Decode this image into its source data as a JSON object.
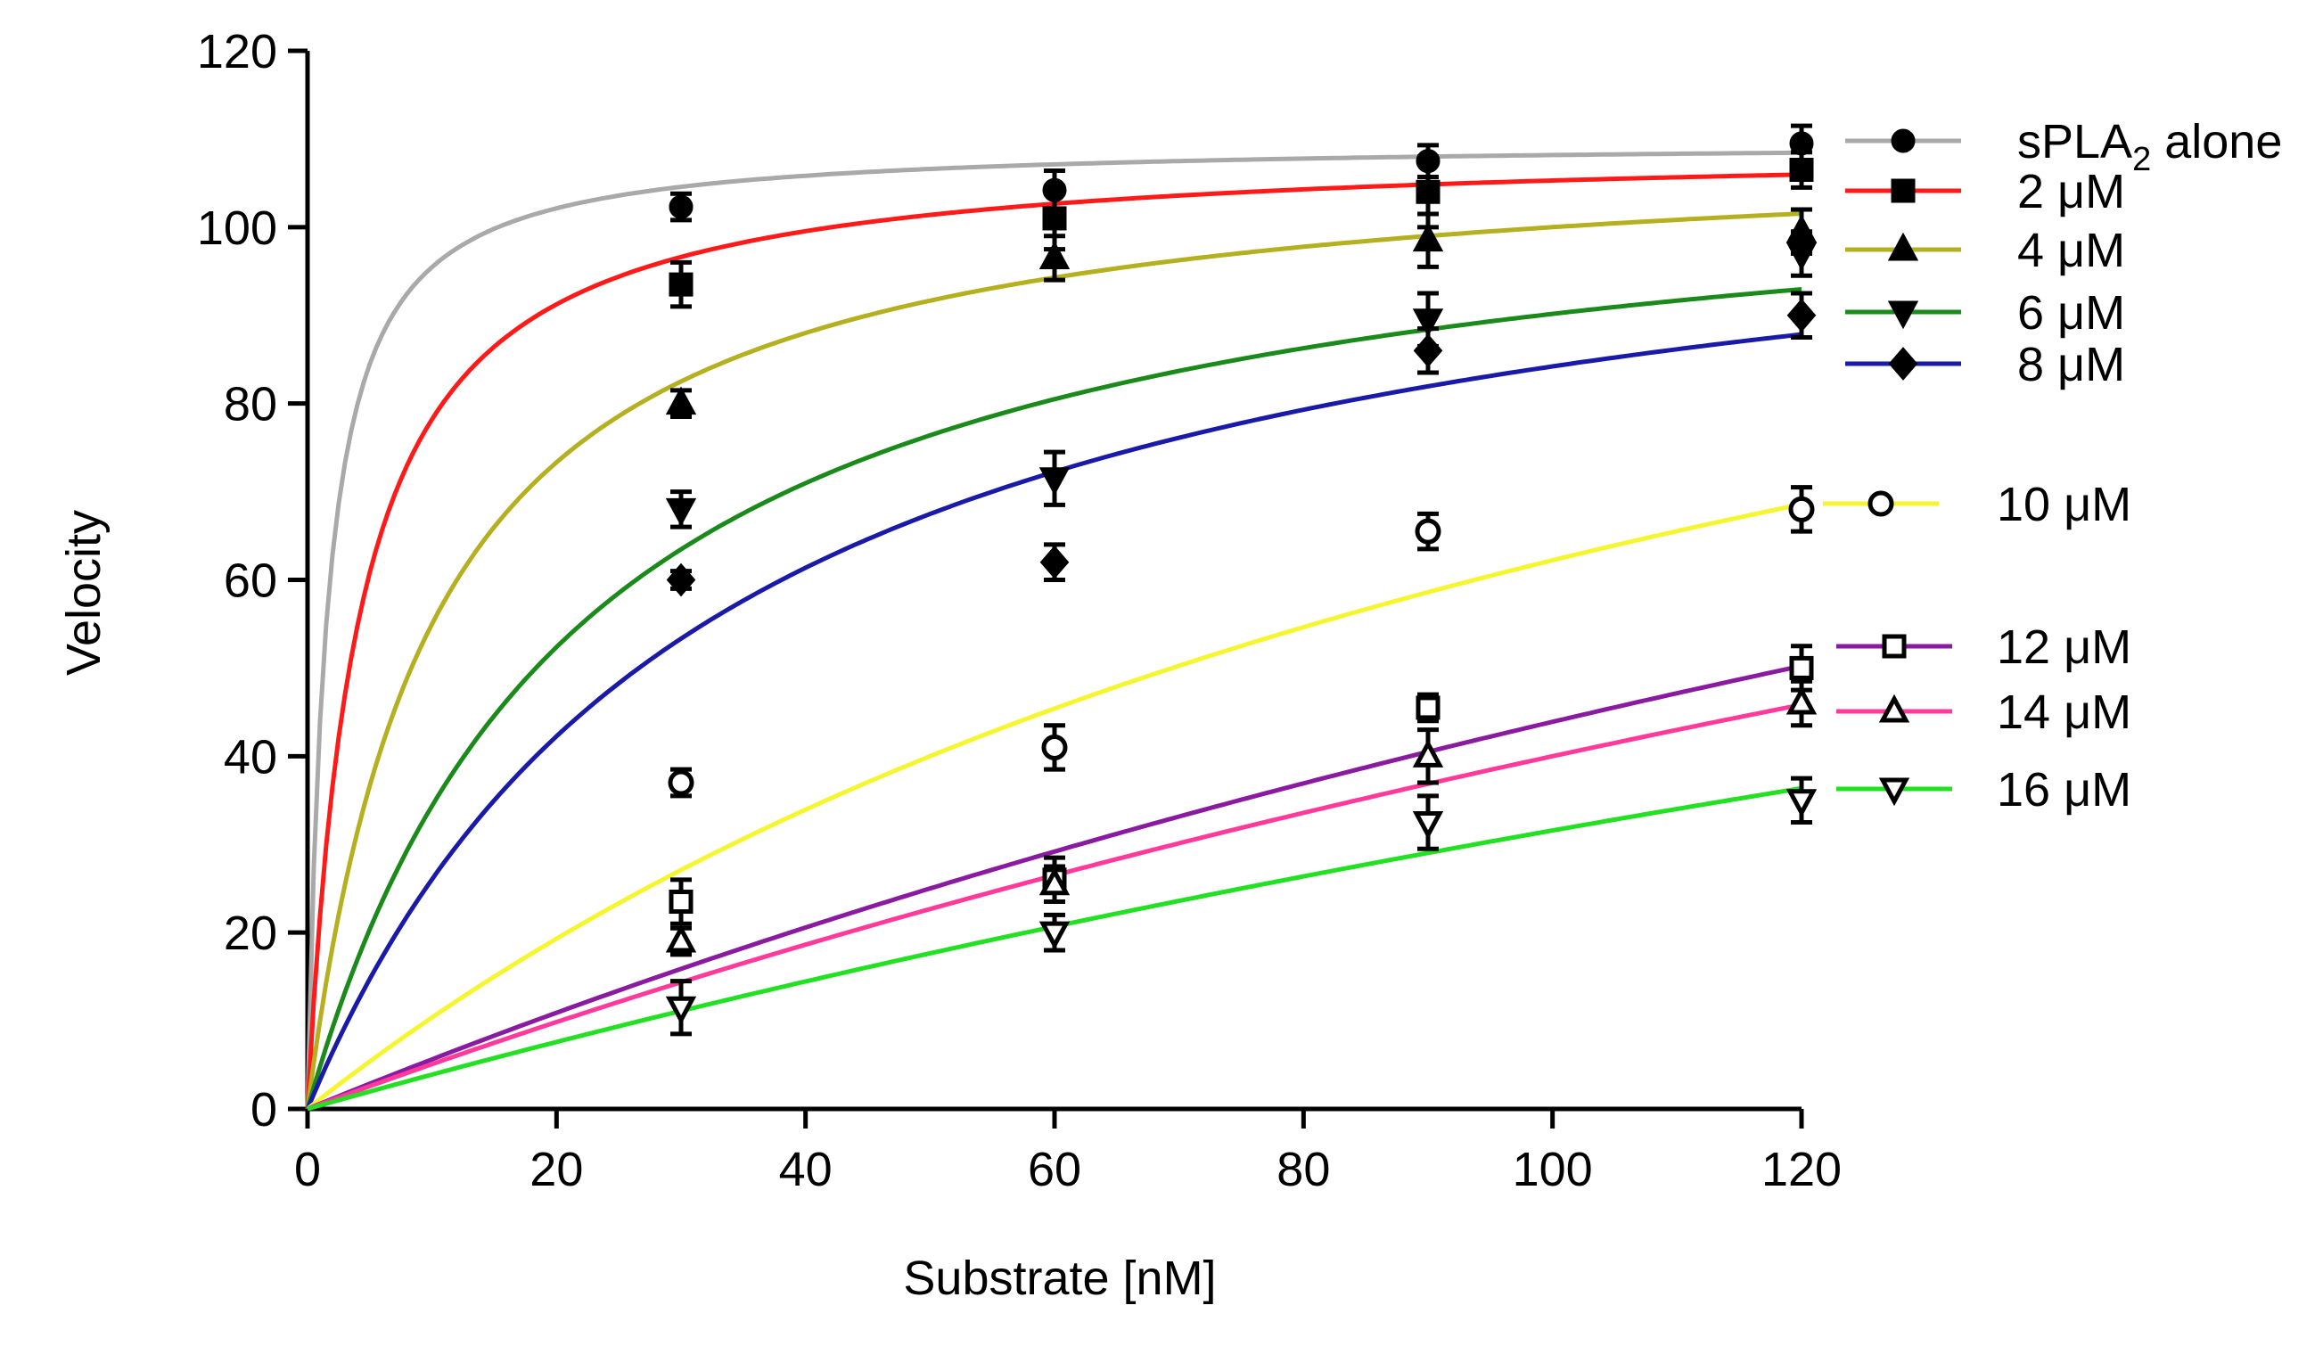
{
  "chart_data": {
    "type": "scatter",
    "title": "",
    "xlabel": "Substrate [nM]",
    "ylabel": "Velocity",
    "xlim": [
      0,
      120
    ],
    "ylim": [
      0,
      120
    ],
    "xticks": [
      0,
      20,
      40,
      60,
      80,
      100,
      120
    ],
    "yticks": [
      0,
      20,
      40,
      60,
      80,
      100,
      120
    ],
    "x": [
      30,
      60,
      90,
      120
    ],
    "legend_position": "right",
    "series": [
      {
        "name": "sPLA2 alone",
        "label_main": "sPLA",
        "label_sub": "2",
        "label_tail": " alone",
        "color": "#a9a9a9",
        "marker": "circle-filled",
        "vmax": 109.8,
        "km": 1.5,
        "values": [
          102.3,
          104.2,
          107.5,
          109.5
        ],
        "errors": [
          1.5,
          2.2,
          1.8,
          2.0
        ]
      },
      {
        "name": "2 μM",
        "label_main": "2 μM",
        "color": "#ff1a1a",
        "marker": "square-filled",
        "vmax": 109.5,
        "km": 4.0,
        "values": [
          93.5,
          101.0,
          104.0,
          106.5
        ],
        "errors": [
          2.5,
          3.5,
          4.0,
          2.0
        ]
      },
      {
        "name": "4 μM",
        "label_main": "4 μM",
        "color": "#b5b020",
        "marker": "triangle-up-filled",
        "vmax": 110.0,
        "km": 10.0,
        "values": [
          80.0,
          96.5,
          98.5,
          99.5
        ],
        "errors": [
          1.5,
          2.5,
          3.0,
          2.5
        ]
      },
      {
        "name": "6 μM",
        "label_main": "6 μM",
        "color": "#1a8a1a",
        "marker": "triangle-down-filled",
        "vmax": 110.0,
        "km": 22.0,
        "values": [
          68.0,
          71.5,
          89.5,
          97.0
        ],
        "errors": [
          2.0,
          3.0,
          3.0,
          2.5
        ]
      },
      {
        "name": "8 μM",
        "label_main": "8 μM",
        "color": "#1a1aa8",
        "marker": "diamond-filled",
        "vmax": 112.0,
        "km": 33.0,
        "values": [
          60.0,
          62.0,
          86.0,
          90.0
        ],
        "errors": [
          1.0,
          2.0,
          2.5,
          2.5
        ]
      },
      {
        "name": "10 μM",
        "label_main": "10 μM",
        "color": "#f5f530",
        "marker": "circle-open",
        "vmax": 140.0,
        "km": 125.0,
        "values": [
          37.0,
          41.0,
          65.5,
          68.0
        ],
        "errors": [
          1.5,
          2.5,
          2.0,
          2.5
        ]
      },
      {
        "name": "12 μM",
        "label_main": "12 μM",
        "color": "#8a1aa0",
        "marker": "square-open",
        "vmax": 180.0,
        "km": 310.0,
        "values": [
          23.5,
          26.0,
          45.5,
          50.0
        ],
        "errors": [
          2.5,
          2.5,
          1.5,
          2.5
        ]
      },
      {
        "name": "14 μM",
        "label_main": "14 μM",
        "color": "#ff3a9a",
        "marker": "triangle-up-open",
        "vmax": 170.0,
        "km": 325.0,
        "values": [
          19.0,
          25.5,
          40.0,
          46.0
        ],
        "errors": [
          1.5,
          2.0,
          3.0,
          2.5
        ]
      },
      {
        "name": "16 μM",
        "label_main": "16 μM",
        "color": "#22e022",
        "marker": "triangle-down-open",
        "vmax": 150.0,
        "km": 375.0,
        "values": [
          11.5,
          20.0,
          32.5,
          35.0
        ],
        "errors": [
          3.0,
          2.0,
          3.0,
          2.5
        ]
      }
    ]
  }
}
